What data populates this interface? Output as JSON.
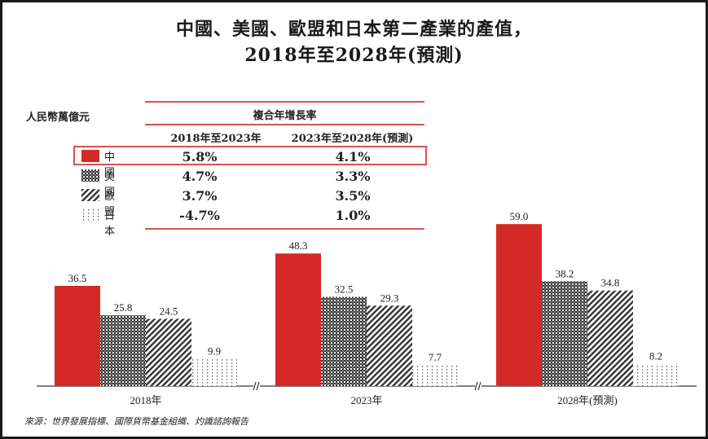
{
  "title_line1": "中國、美國、歐盟和日本第二產業的產值，",
  "title_line2": "2018年至2028年(預測)",
  "unit": "人民幣萬億元",
  "cagr_table": {
    "header": "複合年增長率",
    "columns": [
      "2018年至2023年",
      "2023年至2028年(預測)"
    ],
    "rows": [
      {
        "name": "中國",
        "values": [
          "5.8%",
          "4.1%"
        ],
        "highlighted": true
      },
      {
        "name": "美國",
        "values": [
          "4.7%",
          "3.3%"
        ]
      },
      {
        "name": "歐盟",
        "values": [
          "3.7%",
          "3.5%"
        ]
      },
      {
        "name": "日本",
        "values": [
          "-4.7%",
          "1.0%"
        ]
      }
    ]
  },
  "source": "來源：世界發展指標、國際貨幣基金組織、灼識諮詢報告",
  "colors": {
    "china": "#d42a27",
    "accent_line": "#d9534f",
    "text": "#222222"
  },
  "chart_data": {
    "type": "bar",
    "title": "中國、美國、歐盟和日本第二產業的產值，2018年至2028年(預測)",
    "xlabel": "",
    "ylabel": "人民幣萬億元",
    "categories": [
      "2018年",
      "2023年",
      "2028年(預測)"
    ],
    "series": [
      {
        "name": "中國",
        "pattern": "solid-red",
        "values": [
          36.5,
          48.3,
          59.0
        ],
        "labels": [
          "36.5",
          "48.3",
          "59.0"
        ]
      },
      {
        "name": "美國",
        "pattern": "dense-checker",
        "values": [
          25.8,
          32.5,
          38.2
        ],
        "labels": [
          "25.8",
          "32.5",
          "38.2"
        ]
      },
      {
        "name": "歐盟",
        "pattern": "diagonal-hatch",
        "values": [
          24.5,
          29.3,
          34.8
        ],
        "labels": [
          "24.5",
          "29.3",
          "34.8"
        ]
      },
      {
        "name": "日本",
        "pattern": "sparse-dots",
        "values": [
          9.9,
          7.7,
          8.2
        ],
        "labels": [
          "9.9",
          "7.7",
          "8.2"
        ]
      }
    ],
    "ylim": [
      0,
      60
    ],
    "grid": false,
    "axis_breaks": true,
    "legend": "top-left"
  }
}
